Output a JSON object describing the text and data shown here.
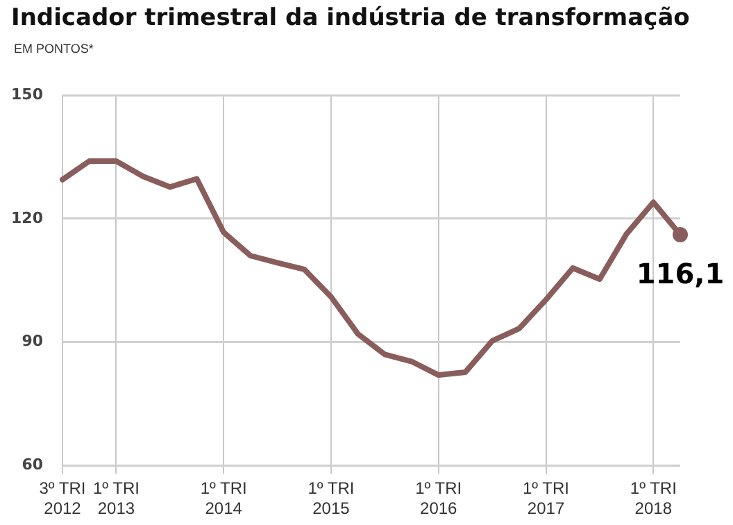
{
  "chart_data": {
    "type": "line",
    "title": "Indicador trimestral da indústria de transformação",
    "subtitle": "EM PONTOS*",
    "categories": [
      "3º TRI 2012",
      null,
      "1º TRI 2013",
      null,
      null,
      null,
      "1º TRI 2014",
      null,
      null,
      null,
      "1º TRI 2015",
      null,
      null,
      null,
      "1º TRI 2016",
      null,
      null,
      null,
      "1º TRI 2017",
      null,
      null,
      null,
      "1º TRI 2018",
      null
    ],
    "series": [
      {
        "color": "#8a5d5d",
        "values": [
          129.5,
          134,
          134,
          130.3,
          127.7,
          129.7,
          116.7,
          111,
          109.3,
          107.7,
          101,
          92,
          87,
          85.3,
          82,
          82.7,
          90.3,
          93.3,
          100.3,
          108,
          105.3,
          116.3,
          124,
          116.1
        ]
      },
      {
        "type": "scatter",
        "color": "#8a5d5d",
        "marker": "circle",
        "values": [
          null,
          null,
          null,
          null,
          null,
          null,
          null,
          null,
          null,
          null,
          null,
          null,
          null,
          null,
          null,
          null,
          null,
          null,
          null,
          null,
          null,
          null,
          null,
          116.1
        ],
        "value_labels": [
          null,
          null,
          null,
          null,
          null,
          null,
          null,
          null,
          null,
          null,
          null,
          null,
          null,
          null,
          null,
          null,
          null,
          null,
          null,
          null,
          null,
          null,
          null,
          "116,1"
        ]
      }
    ],
    "ylim": [
      60,
      150
    ],
    "yticks": [
      60,
      90,
      120,
      150
    ],
    "grid": true,
    "marker": "none",
    "legend": false
  }
}
